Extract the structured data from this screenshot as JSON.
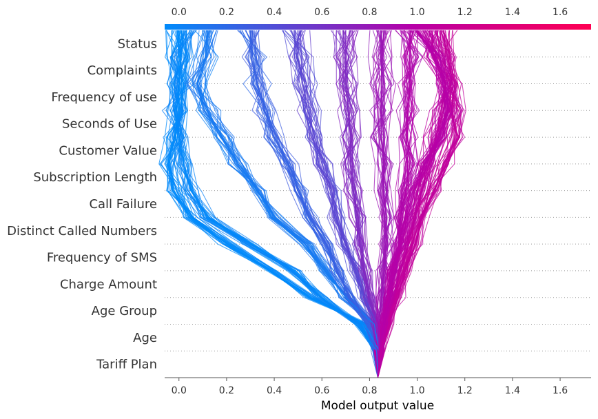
{
  "chart_data": {
    "type": "line",
    "subtype": "shap-decision-plot",
    "title": "",
    "xlabel": "Model output value",
    "ylabel": "",
    "xlim": [
      -0.06,
      1.73
    ],
    "base_value": 0.835,
    "features_top_to_bottom": [
      "Status",
      "Complaints",
      "Frequency of use",
      "Seconds of Use",
      "Customer Value",
      "Subscription Length",
      "Call Failure",
      "Distinct Called Numbers",
      "Frequency of SMS",
      "Charge Amount",
      "Age Group",
      "Age",
      "Tariff Plan"
    ],
    "x_ticks": [
      "0.0",
      "0.2",
      "0.4",
      "0.6",
      "0.8",
      "1.0",
      "1.2",
      "1.4",
      "1.6"
    ],
    "x_tick_values": [
      0.0,
      0.2,
      0.4,
      0.6,
      0.8,
      1.0,
      1.2,
      1.4,
      1.6
    ],
    "colorbar": {
      "gradient": [
        "#008bfb",
        "#b600a8",
        "#ff0052"
      ],
      "low": 0.0,
      "mid": 1.0,
      "high": 1.73
    },
    "grid": "dotted horizontal lines between features",
    "legend": "none (color bar along top axis)",
    "series": [
      {
        "final_output": 0.0,
        "path_bottom_to_top": [
          0.835,
          0.84,
          0.78,
          0.55,
          0.38,
          0.2,
          0.05,
          -0.02,
          -0.04,
          -0.02,
          0.0,
          0.0,
          0.0,
          0.0
        ]
      },
      {
        "final_output": 0.02,
        "path_bottom_to_top": [
          0.835,
          0.83,
          0.75,
          0.6,
          0.48,
          0.3,
          0.12,
          0.05,
          0.02,
          0.0,
          -0.01,
          0.0,
          0.01,
          0.02
        ]
      },
      {
        "final_output": 0.12,
        "path_bottom_to_top": [
          0.835,
          0.84,
          0.82,
          0.7,
          0.62,
          0.53,
          0.4,
          0.33,
          0.25,
          0.18,
          0.12,
          0.08,
          0.11,
          0.12
        ]
      },
      {
        "final_output": 0.3,
        "path_bottom_to_top": [
          0.835,
          0.83,
          0.8,
          0.72,
          0.66,
          0.62,
          0.55,
          0.5,
          0.46,
          0.4,
          0.36,
          0.33,
          0.31,
          0.3
        ]
      },
      {
        "final_output": 0.5,
        "path_bottom_to_top": [
          0.835,
          0.84,
          0.83,
          0.78,
          0.74,
          0.7,
          0.66,
          0.64,
          0.6,
          0.57,
          0.54,
          0.52,
          0.5,
          0.5
        ]
      },
      {
        "final_output": 0.7,
        "path_bottom_to_top": [
          0.835,
          0.84,
          0.83,
          0.8,
          0.78,
          0.76,
          0.75,
          0.73,
          0.72,
          0.72,
          0.71,
          0.7,
          0.7,
          0.7
        ]
      },
      {
        "final_output": 0.85,
        "path_bottom_to_top": [
          0.835,
          0.84,
          0.84,
          0.85,
          0.86,
          0.87,
          0.87,
          0.86,
          0.86,
          0.85,
          0.85,
          0.85,
          0.85,
          0.85
        ]
      },
      {
        "final_output": 0.97,
        "path_bottom_to_top": [
          0.835,
          0.84,
          0.86,
          0.88,
          0.9,
          0.92,
          0.93,
          0.95,
          0.97,
          0.96,
          0.96,
          0.97,
          0.97,
          0.97
        ]
      },
      {
        "final_output": 1.05,
        "path_bottom_to_top": [
          0.835,
          0.84,
          0.87,
          0.9,
          0.93,
          0.96,
          0.99,
          1.02,
          1.05,
          1.08,
          1.1,
          1.12,
          1.08,
          1.05
        ]
      },
      {
        "final_output": 1.1,
        "path_bottom_to_top": [
          0.835,
          0.85,
          0.88,
          0.92,
          0.95,
          0.99,
          1.02,
          1.07,
          1.12,
          1.16,
          1.15,
          1.15,
          1.13,
          1.1
        ]
      },
      {
        "final_output": 1.0,
        "path_bottom_to_top": [
          0.835,
          0.84,
          0.86,
          0.88,
          0.9,
          0.93,
          0.96,
          0.99,
          1.03,
          1.09,
          1.13,
          1.12,
          1.08,
          1.0
        ]
      }
    ],
    "line_density": "several hundred lines; mostly fanning out from the base value near 0.84 toward either 0.0 (blue) or about 1.0 (magenta)"
  }
}
